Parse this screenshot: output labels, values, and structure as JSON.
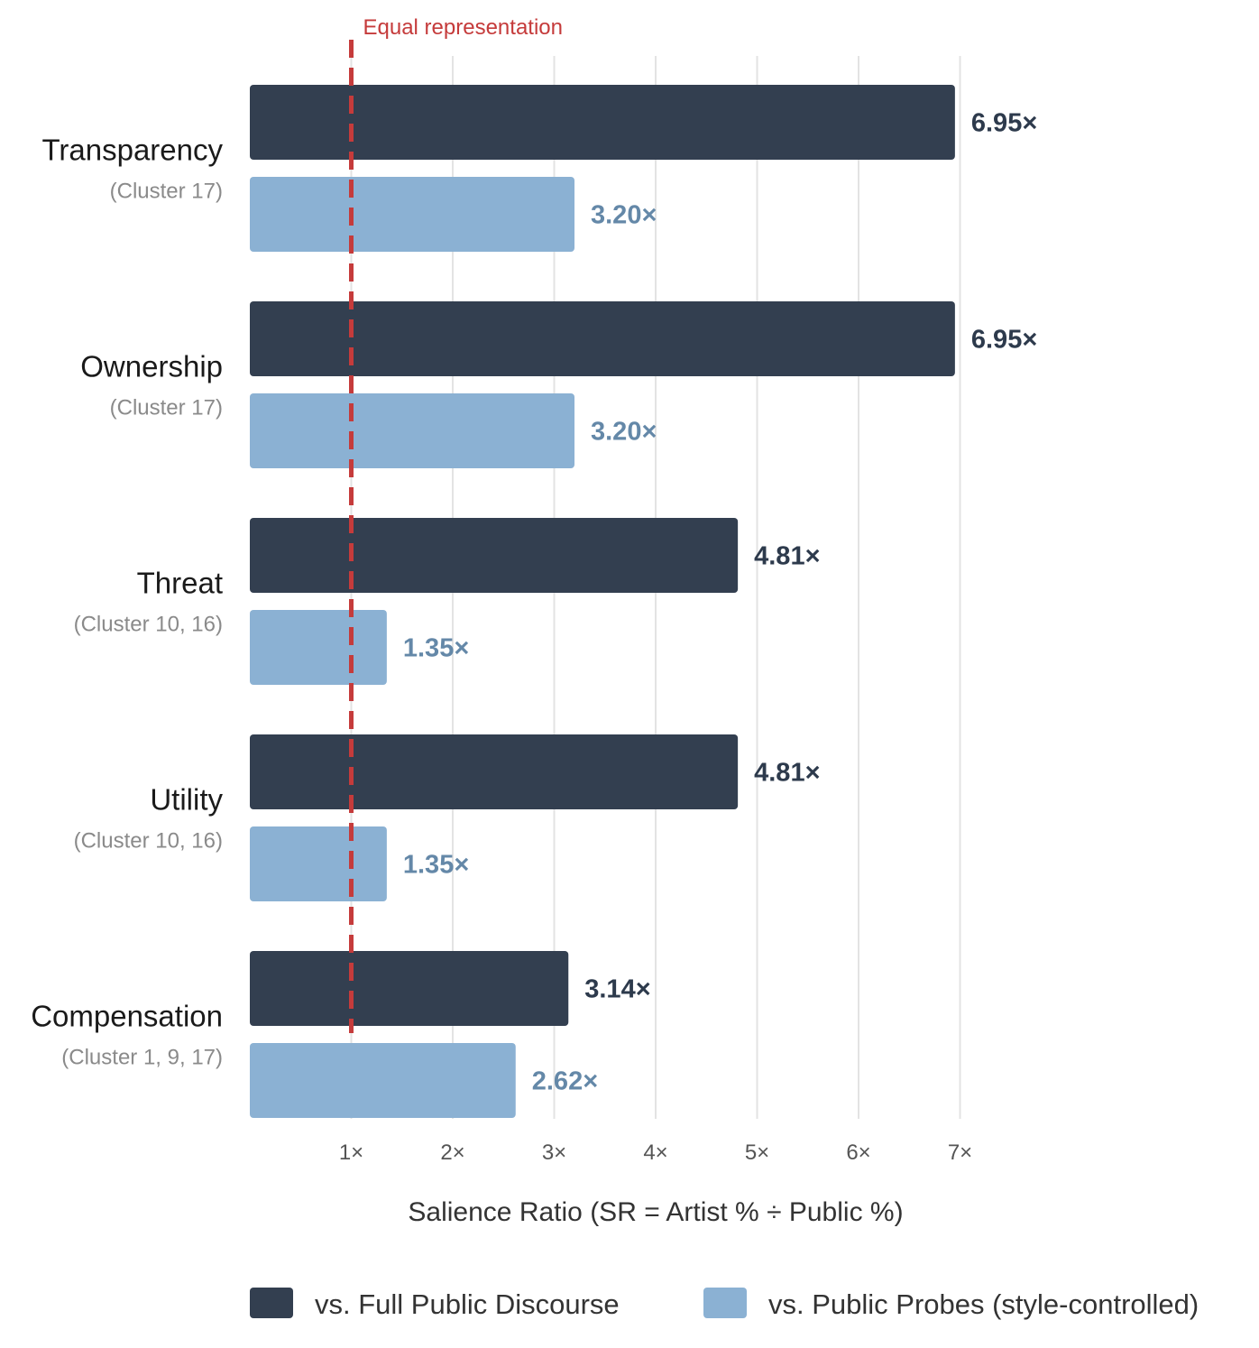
{
  "chart_data": {
    "type": "bar",
    "orientation": "horizontal",
    "title": "",
    "xlabel": "Salience Ratio (SR = Artist % ÷ Public %)",
    "ylabel": "",
    "xlim": [
      0,
      7.4
    ],
    "x_ticks": [
      1,
      2,
      3,
      4,
      5,
      6,
      7
    ],
    "x_tick_labels": [
      "1×",
      "2×",
      "3×",
      "4×",
      "5×",
      "6×",
      "7×"
    ],
    "grid": "vertical",
    "categories": [
      "Transparency",
      "Ownership",
      "Threat",
      "Utility",
      "Compensation"
    ],
    "category_subtitles": [
      "(Cluster 17)",
      "(Cluster 17)",
      "(Cluster 10, 16)",
      "(Cluster 10, 16)",
      "(Cluster 1, 9, 17)"
    ],
    "series": [
      {
        "name": "vs. Full Public Discourse",
        "color": "#333f50",
        "label_color": "#2d3a4c",
        "values": [
          6.95,
          6.95,
          4.81,
          4.81,
          3.14
        ],
        "value_labels": [
          "6.95×",
          "6.95×",
          "4.81×",
          "4.81×",
          "3.14×"
        ]
      },
      {
        "name": "vs. Public Probes (style-controlled)",
        "color": "#8bb1d3",
        "label_color": "#6488a8",
        "values": [
          3.2,
          3.2,
          1.35,
          1.35,
          2.62
        ],
        "value_labels": [
          "3.20×",
          "3.20×",
          "1.35×",
          "1.35×",
          "2.62×"
        ]
      }
    ],
    "reference_line": {
      "value": 1,
      "label": "Equal representation",
      "color": "#c53b3b"
    },
    "legend_position": "bottom"
  }
}
